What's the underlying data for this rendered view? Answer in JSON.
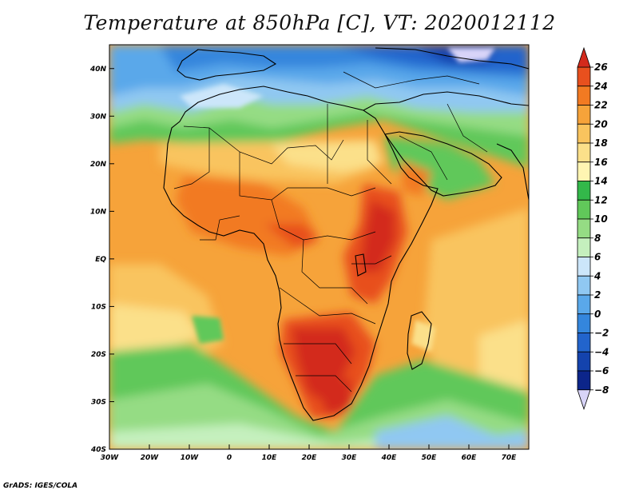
{
  "title": "Temperature at 850hPa [C], VT: 2020012112",
  "footer": "GrADS: IGES/COLA",
  "map": {
    "lon_range": [
      -30,
      75
    ],
    "lat_range": [
      -40,
      45
    ],
    "lon_ticks": [
      {
        "value": -30,
        "label": "30W"
      },
      {
        "value": -20,
        "label": "20W"
      },
      {
        "value": -10,
        "label": "10W"
      },
      {
        "value": 0,
        "label": "0"
      },
      {
        "value": 10,
        "label": "10E"
      },
      {
        "value": 20,
        "label": "20E"
      },
      {
        "value": 30,
        "label": "30E"
      },
      {
        "value": 40,
        "label": "40E"
      },
      {
        "value": 50,
        "label": "50E"
      },
      {
        "value": 60,
        "label": "60E"
      },
      {
        "value": 70,
        "label": "70E"
      }
    ],
    "lat_ticks": [
      {
        "value": 40,
        "label": "40N"
      },
      {
        "value": 30,
        "label": "30N"
      },
      {
        "value": 20,
        "label": "20N"
      },
      {
        "value": 10,
        "label": "10N"
      },
      {
        "value": 0,
        "label": "EQ"
      },
      {
        "value": -10,
        "label": "10S"
      },
      {
        "value": -20,
        "label": "20S"
      },
      {
        "value": -30,
        "label": "30S"
      },
      {
        "value": -40,
        "label": "40S"
      }
    ]
  },
  "colorbar": {
    "labels": [
      "26",
      "24",
      "22",
      "20",
      "18",
      "16",
      "14",
      "12",
      "10",
      "8",
      "6",
      "4",
      "2",
      "0",
      "−2",
      "−4",
      "−6",
      "−8"
    ],
    "colors": [
      "#d32a1c",
      "#e8501e",
      "#f27a22",
      "#f6a33a",
      "#f9c45e",
      "#fbe08a",
      "#fff5b2",
      "#33b84a",
      "#61c85a",
      "#95dc84",
      "#c5f0be",
      "#cce6fa",
      "#90c8f2",
      "#5aa8ea",
      "#3486dd",
      "#2264cc",
      "#1443ad",
      "#0c258a",
      "#d8d4f8"
    ]
  }
}
